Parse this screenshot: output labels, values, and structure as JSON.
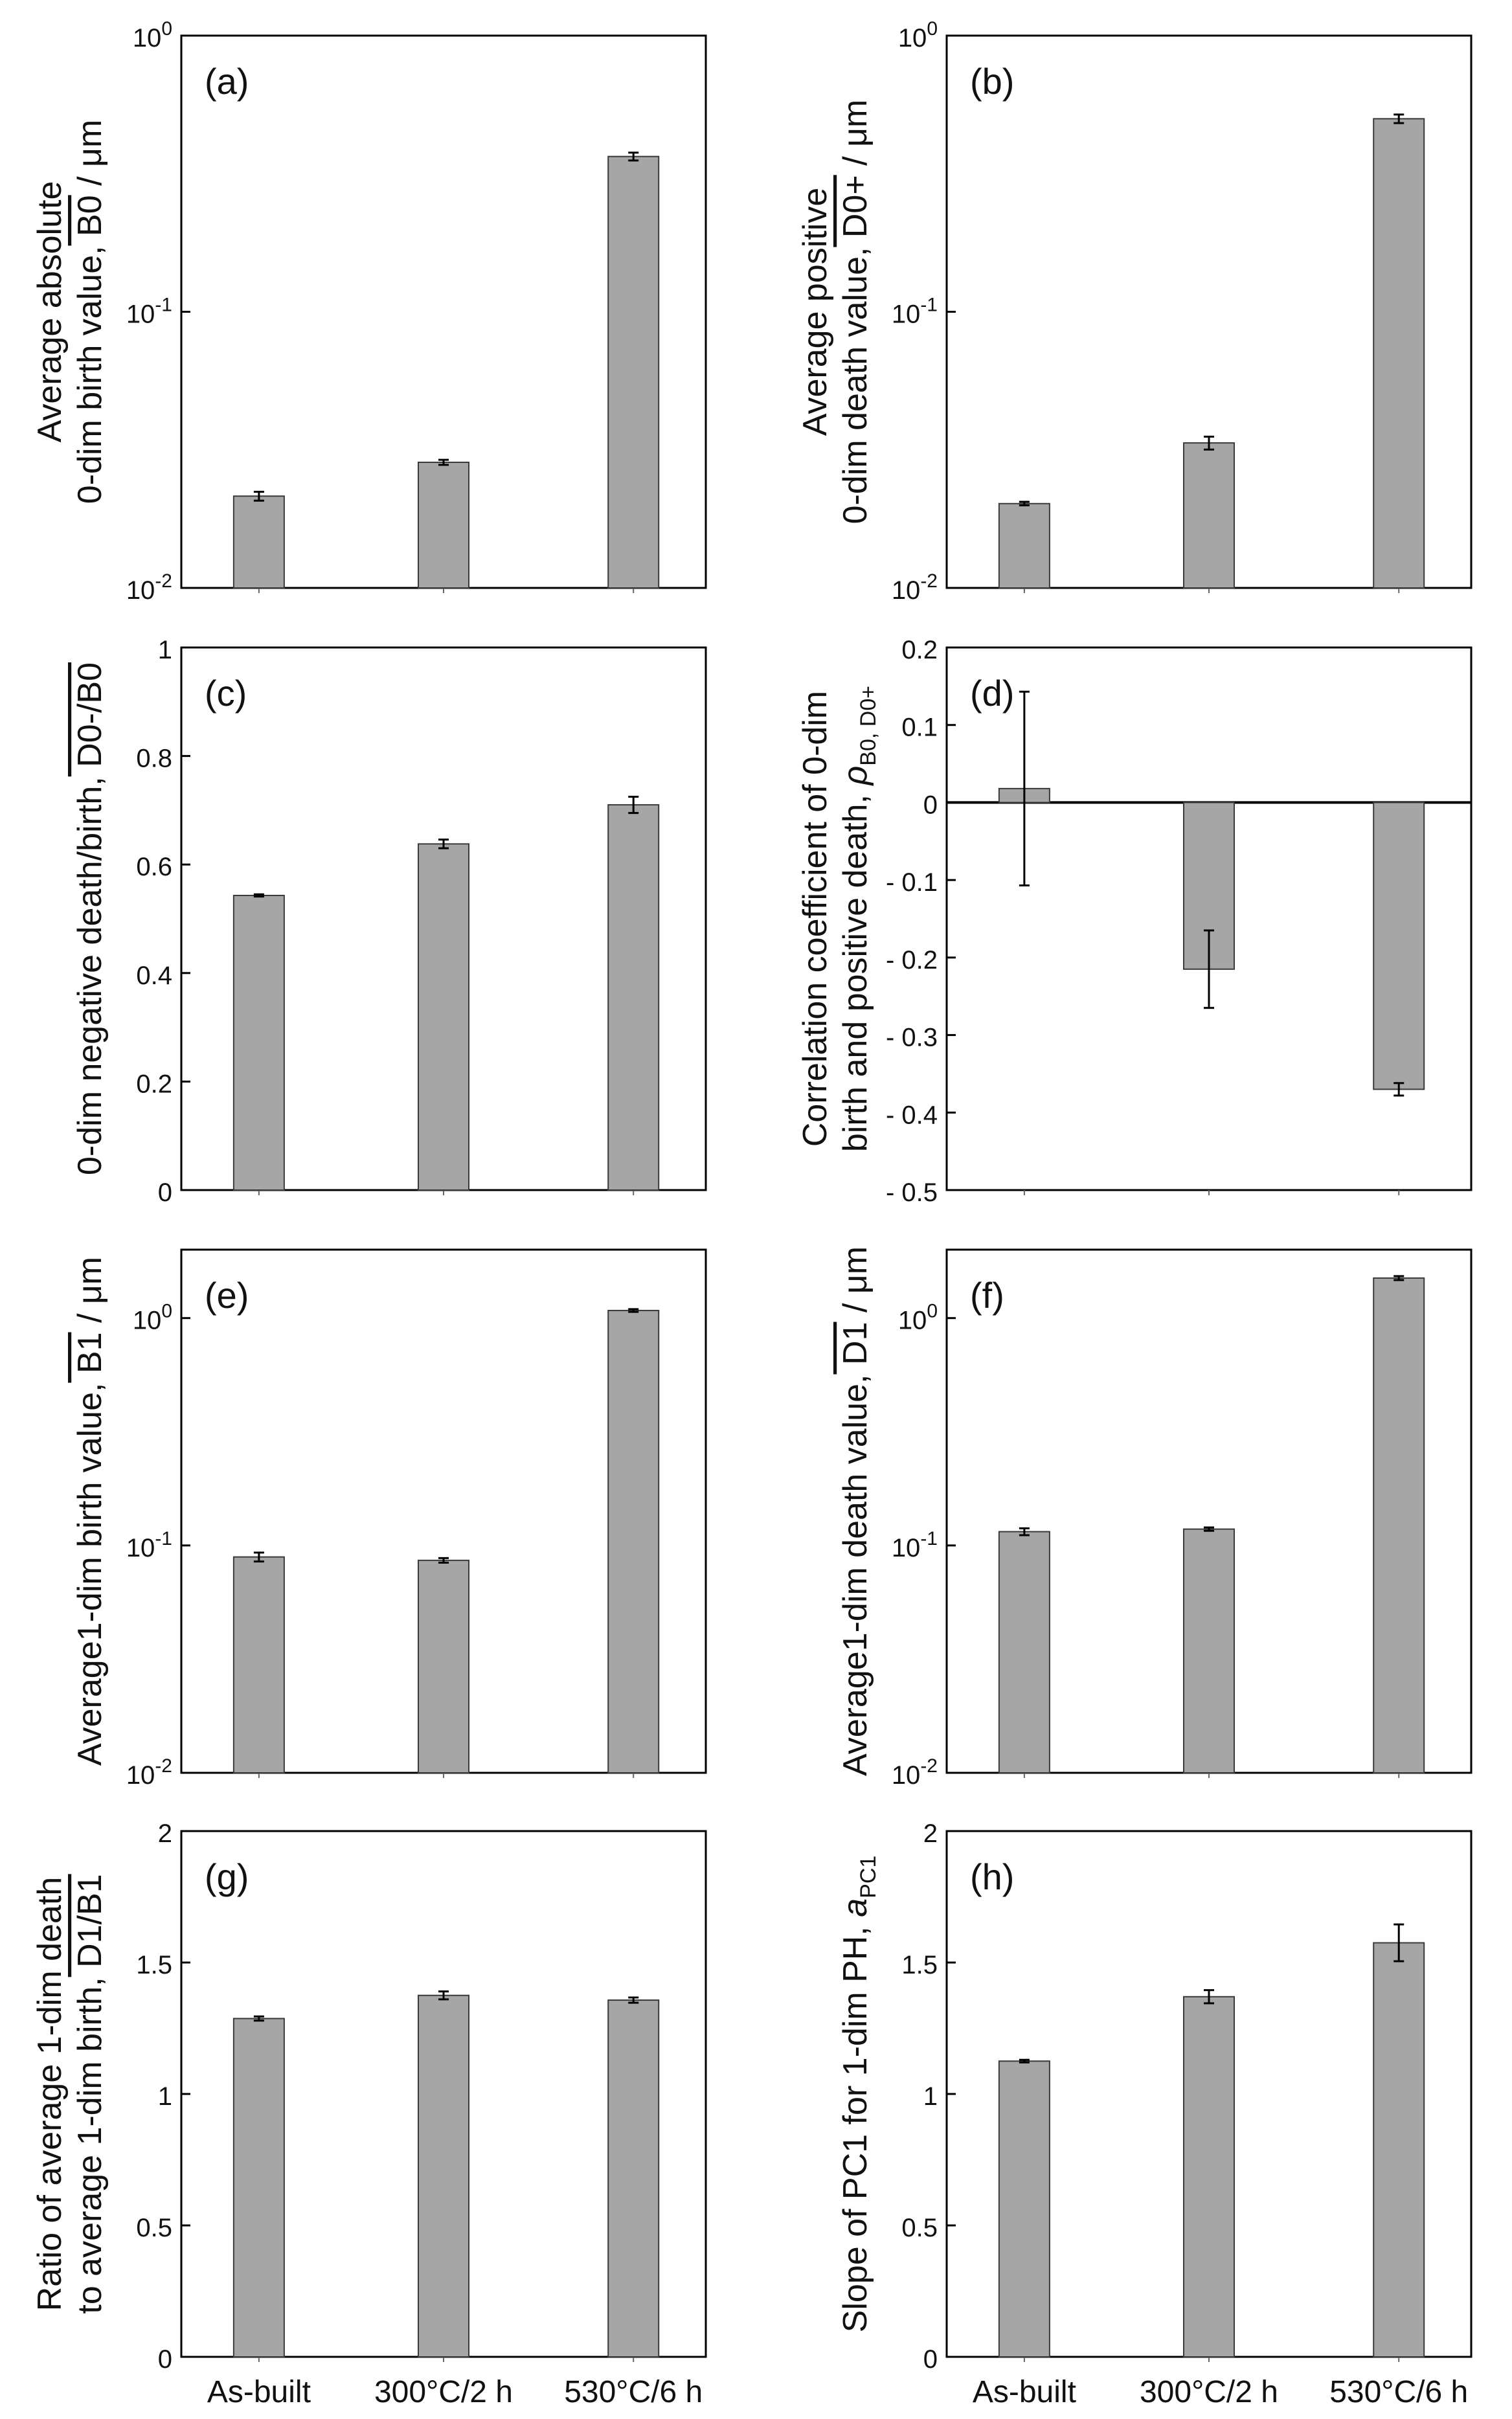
{
  "figure": {
    "categories": [
      "As-built",
      "300°C/2 h",
      "530°C/6 h"
    ],
    "colors": {
      "bar": "#a6a6a6",
      "bar_stroke": "#3a3a3a",
      "axis": "#000000",
      "text": "#111111"
    }
  },
  "chart_data": [
    {
      "id": "a",
      "type": "bar",
      "panel_label": "(a)",
      "scale": "log",
      "ylim": [
        0.01,
        1
      ],
      "ytick_labels": [
        {
          "value": 0.01,
          "base": "10",
          "exp": "-2"
        },
        {
          "value": 0.1,
          "base": "10",
          "exp": "-1"
        },
        {
          "value": 1,
          "base": "10",
          "exp": "0"
        }
      ],
      "ylabel_lines": [
        "Average absolute",
        "0-dim birth value,"
      ],
      "ylabel_symbol": "B0",
      "ylabel_unit": " / μm",
      "categories": [
        "As-built",
        "300°C/2 h",
        "530°C/6 h"
      ],
      "values": [
        0.0215,
        0.0285,
        0.365
      ],
      "errors": [
        0.0008,
        0.0006,
        0.012
      ]
    },
    {
      "id": "b",
      "type": "bar",
      "panel_label": "(b)",
      "scale": "log",
      "ylim": [
        0.01,
        1
      ],
      "ytick_labels": [
        {
          "value": 0.01,
          "base": "10",
          "exp": "-2"
        },
        {
          "value": 0.1,
          "base": "10",
          "exp": "-1"
        },
        {
          "value": 1,
          "base": "10",
          "exp": "0"
        }
      ],
      "ylabel_lines": [
        "Average positive",
        "0-dim death value,"
      ],
      "ylabel_symbol": "D0+",
      "ylabel_unit": " / μm",
      "categories": [
        "As-built",
        "300°C/2 h",
        "530°C/6 h"
      ],
      "values": [
        0.0202,
        0.0335,
        0.5
      ],
      "errors": [
        0.0003,
        0.0018,
        0.018
      ]
    },
    {
      "id": "c",
      "type": "bar",
      "panel_label": "(c)",
      "scale": "linear",
      "ylim": [
        0,
        1
      ],
      "ytick_labels": [
        {
          "value": 0,
          "label": "0"
        },
        {
          "value": 0.2,
          "label": "0.2"
        },
        {
          "value": 0.4,
          "label": "0.4"
        },
        {
          "value": 0.6,
          "label": "0.6"
        },
        {
          "value": 0.8,
          "label": "0.8"
        },
        {
          "value": 1,
          "label": "1"
        }
      ],
      "ylabel_lines": [
        "0-dim negative death/birth,"
      ],
      "ylabel_symbol": "D0-/B0",
      "ylabel_unit": "",
      "categories": [
        "As-built",
        "300°C/2 h",
        "530°C/6 h"
      ],
      "values": [
        0.543,
        0.638,
        0.71
      ],
      "errors": [
        0.002,
        0.008,
        0.015
      ]
    },
    {
      "id": "d",
      "type": "bar",
      "panel_label": "(d)",
      "scale": "linear",
      "ylim": [
        -0.5,
        0.2
      ],
      "ytick_labels": [
        {
          "value": -0.5,
          "label": "- 0.5"
        },
        {
          "value": -0.4,
          "label": "- 0.4"
        },
        {
          "value": -0.3,
          "label": "- 0.3"
        },
        {
          "value": -0.2,
          "label": "- 0.2"
        },
        {
          "value": -0.1,
          "label": "- 0.1"
        },
        {
          "value": 0,
          "label": "0"
        },
        {
          "value": 0.1,
          "label": "0.1"
        },
        {
          "value": 0.2,
          "label": "0.2"
        }
      ],
      "ylabel_lines": [
        "Correlation coefficient of 0-dim",
        "birth and positive death,"
      ],
      "ylabel_symbol": "ρ",
      "ylabel_subscript": "B0, D0+",
      "ylabel_unit": "",
      "categories": [
        "As-built",
        "300°C/2 h",
        "530°C/6 h"
      ],
      "values": [
        0.018,
        -0.215,
        -0.37
      ],
      "errors": [
        0.125,
        0.05,
        0.008
      ],
      "zero_line": true
    },
    {
      "id": "e",
      "type": "bar",
      "panel_label": "(e)",
      "scale": "log",
      "ylim": [
        0.01,
        2
      ],
      "ytick_labels": [
        {
          "value": 0.01,
          "base": "10",
          "exp": "-2"
        },
        {
          "value": 0.1,
          "base": "10",
          "exp": "-1"
        },
        {
          "value": 1,
          "base": "10",
          "exp": "0"
        }
      ],
      "ylabel_lines": [
        "Average1-dim birth value,"
      ],
      "ylabel_symbol": "B1",
      "ylabel_unit": " / μm",
      "categories": [
        "As-built",
        "300°C/2 h",
        "530°C/6 h"
      ],
      "values": [
        0.089,
        0.086,
        1.08
      ],
      "errors": [
        0.004,
        0.002,
        0.015
      ]
    },
    {
      "id": "f",
      "type": "bar",
      "panel_label": "(f)",
      "scale": "log",
      "ylim": [
        0.01,
        2
      ],
      "ytick_labels": [
        {
          "value": 0.01,
          "base": "10",
          "exp": "-2"
        },
        {
          "value": 0.1,
          "base": "10",
          "exp": "-1"
        },
        {
          "value": 1,
          "base": "10",
          "exp": "0"
        }
      ],
      "ylabel_lines": [
        "Average1-dim death value,"
      ],
      "ylabel_symbol": "D1",
      "ylabel_unit": " / μm",
      "categories": [
        "As-built",
        "300°C/2 h",
        "530°C/6 h"
      ],
      "values": [
        0.115,
        0.118,
        1.5
      ],
      "errors": [
        0.004,
        0.002,
        0.03
      ]
    },
    {
      "id": "g",
      "type": "bar",
      "panel_label": "(g)",
      "scale": "linear",
      "ylim": [
        0,
        2
      ],
      "ytick_labels": [
        {
          "value": 0,
          "label": "0"
        },
        {
          "value": 0.5,
          "label": "0.5"
        },
        {
          "value": 1,
          "label": "1"
        },
        {
          "value": 1.5,
          "label": "1.5"
        },
        {
          "value": 2,
          "label": "2"
        }
      ],
      "ylabel_lines": [
        "Ratio of average 1-dim death",
        "to average 1-dim birth,"
      ],
      "ylabel_symbol": "D1/B1",
      "ylabel_unit": "",
      "categories": [
        "As-built",
        "300°C/2 h",
        "530°C/6 h"
      ],
      "values": [
        1.287,
        1.375,
        1.357
      ],
      "errors": [
        0.008,
        0.015,
        0.01
      ]
    },
    {
      "id": "h",
      "type": "bar",
      "panel_label": "(h)",
      "scale": "linear",
      "ylim": [
        0,
        2
      ],
      "ytick_labels": [
        {
          "value": 0,
          "label": "0"
        },
        {
          "value": 0.5,
          "label": "0.5"
        },
        {
          "value": 1,
          "label": "1"
        },
        {
          "value": 1.5,
          "label": "1.5"
        },
        {
          "value": 2,
          "label": "2"
        }
      ],
      "ylabel_lines": [
        "Slope of PC1 for 1-dim PH,"
      ],
      "ylabel_symbol": "a",
      "ylabel_subscript": "PC1",
      "ylabel_unit": "",
      "categories": [
        "As-built",
        "300°C/2 h",
        "530°C/6 h"
      ],
      "values": [
        1.125,
        1.37,
        1.575
      ],
      "errors": [
        0.005,
        0.025,
        0.07
      ]
    }
  ]
}
